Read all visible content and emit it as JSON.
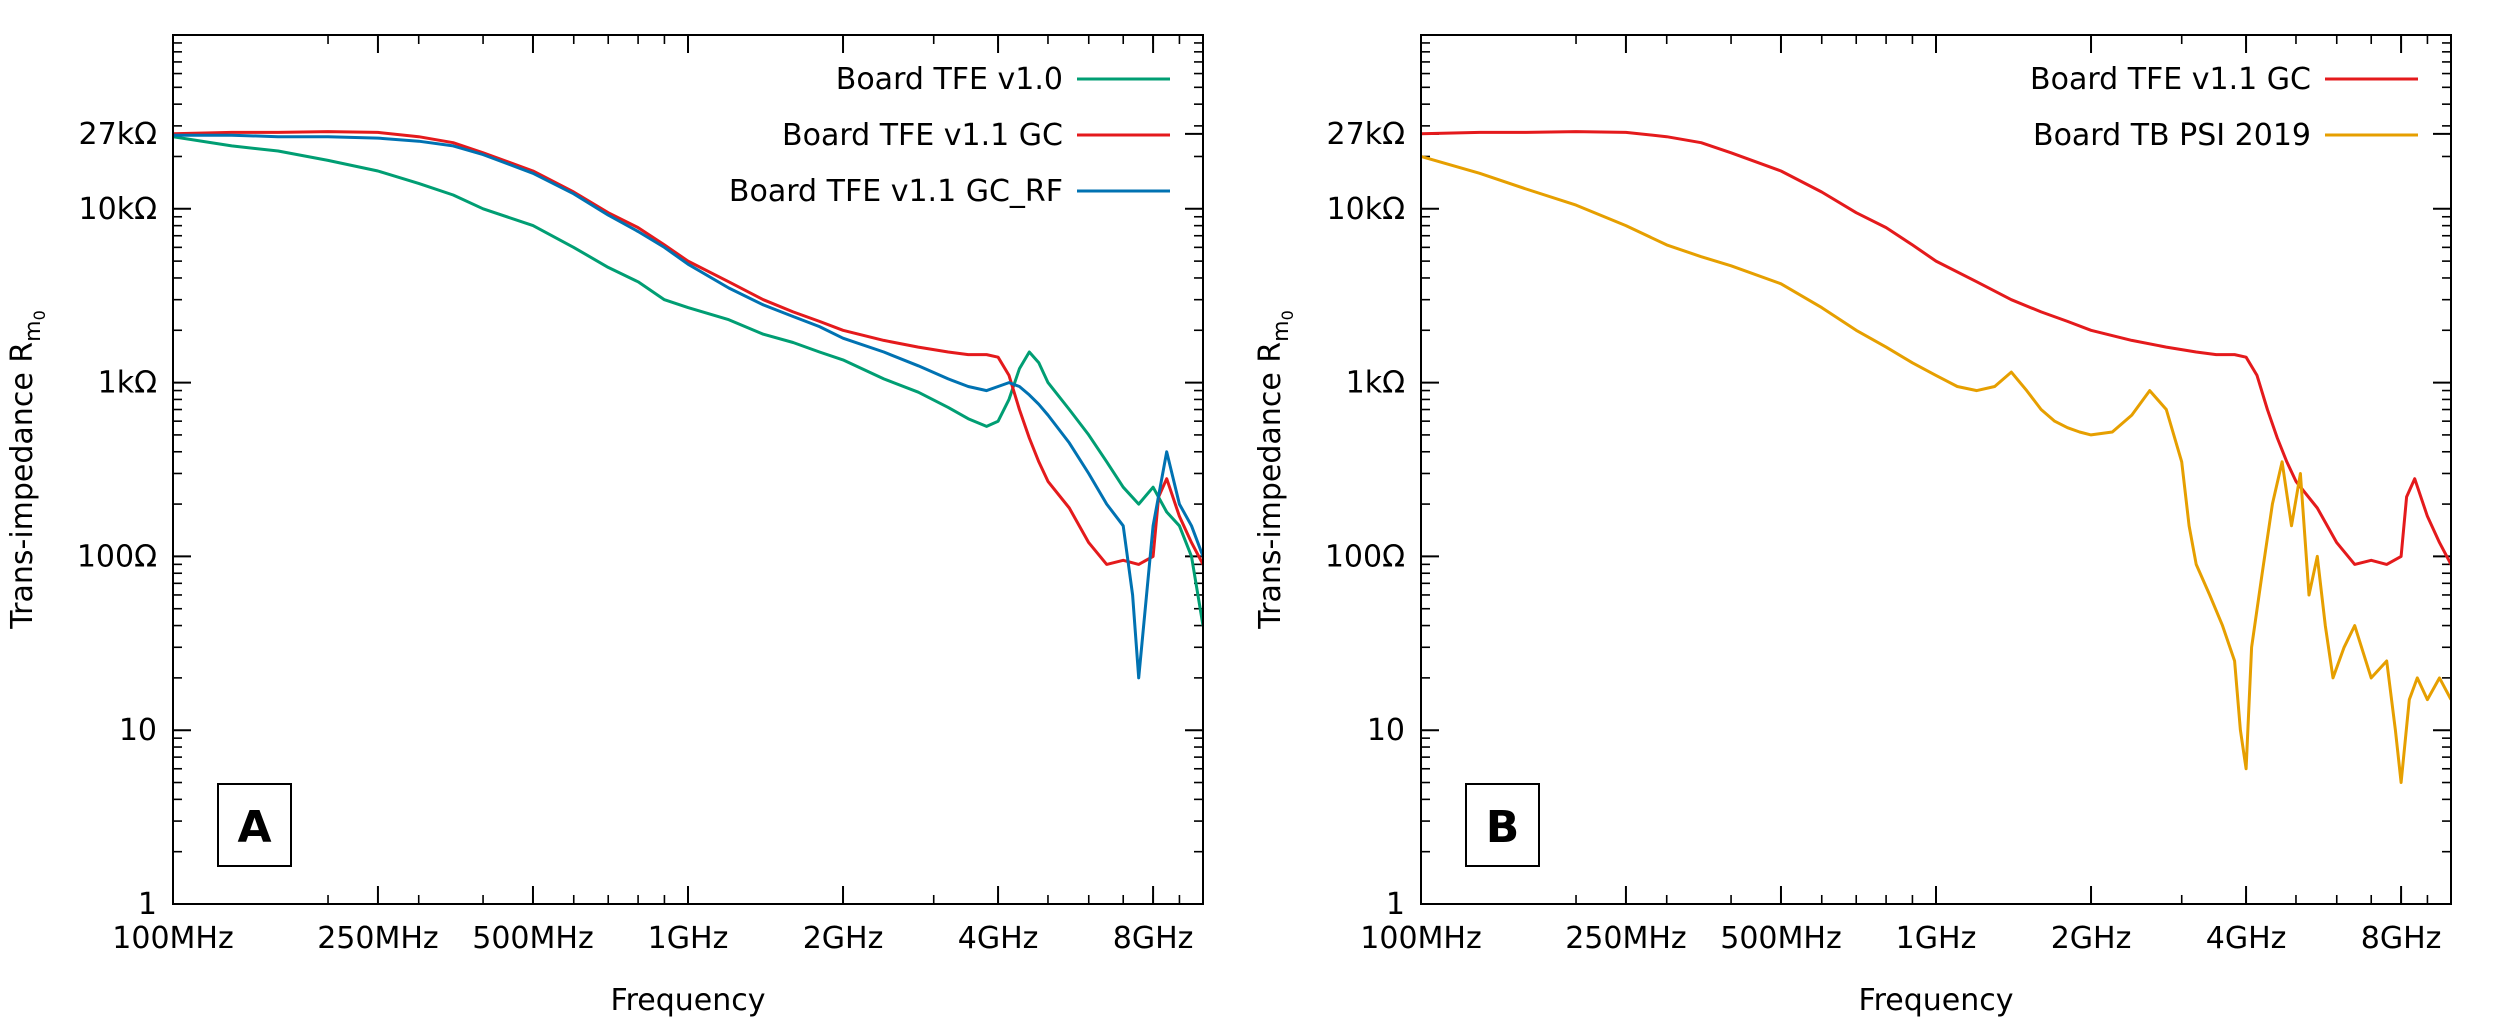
{
  "chart_data": [
    {
      "type": "line",
      "panel_label": "A",
      "xlabel": "Frequency",
      "ylabel": "Trans-impedance R",
      "ylabel_sub": "m",
      "ylabel_subsub": "0",
      "xscale": "log",
      "yscale": "log",
      "xlim": [
        100,
        10000
      ],
      "ylim": [
        1,
        100000
      ],
      "x_ticks": [
        {
          "value": 100,
          "label": "100MHz"
        },
        {
          "value": 250,
          "label": "250MHz"
        },
        {
          "value": 500,
          "label": "500MHz"
        },
        {
          "value": 1000,
          "label": "1GHz"
        },
        {
          "value": 2000,
          "label": "2GHz"
        },
        {
          "value": 4000,
          "label": "4GHz"
        },
        {
          "value": 8000,
          "label": "8GHz"
        }
      ],
      "y_ticks": [
        {
          "value": 1,
          "label": "1"
        },
        {
          "value": 10,
          "label": "10"
        },
        {
          "value": 100,
          "label": "100Ω"
        },
        {
          "value": 1000,
          "label": "1kΩ"
        },
        {
          "value": 10000,
          "label": "10kΩ"
        },
        {
          "value": 27000,
          "label": "27kΩ"
        }
      ],
      "legend_position": "top-right",
      "series": [
        {
          "name": "Board TFE v1.0",
          "color": "#009e73",
          "x": [
            100,
            130,
            160,
            200,
            250,
            300,
            350,
            400,
            500,
            600,
            700,
            800,
            900,
            1000,
            1200,
            1400,
            1600,
            1800,
            2000,
            2400,
            2800,
            3200,
            3500,
            3800,
            4000,
            4200,
            4400,
            4600,
            4800,
            5000,
            5500,
            6000,
            6500,
            7000,
            7500,
            8000,
            8500,
            9000,
            9500,
            10000
          ],
          "y": [
            26000,
            23000,
            21500,
            19000,
            16500,
            14000,
            12000,
            10000,
            8000,
            6000,
            4600,
            3800,
            3000,
            2700,
            2300,
            1900,
            1700,
            1500,
            1350,
            1050,
            880,
            720,
            620,
            560,
            600,
            800,
            1200,
            1500,
            1300,
            1000,
            700,
            500,
            350,
            250,
            200,
            250,
            180,
            150,
            100,
            40
          ]
        },
        {
          "name": "Board TFE v1.1 GC",
          "color": "#e41a1c",
          "x": [
            100,
            130,
            160,
            200,
            250,
            300,
            350,
            400,
            500,
            600,
            700,
            800,
            900,
            1000,
            1200,
            1400,
            1600,
            1800,
            2000,
            2400,
            2800,
            3200,
            3500,
            3800,
            4000,
            4200,
            4400,
            4600,
            4800,
            5000,
            5500,
            6000,
            6500,
            7000,
            7500,
            8000,
            8200,
            8500,
            9000,
            9500,
            10000
          ],
          "y": [
            27000,
            27500,
            27500,
            27800,
            27500,
            26000,
            24000,
            21000,
            16500,
            12500,
            9500,
            7800,
            6200,
            5000,
            3800,
            3000,
            2550,
            2250,
            2000,
            1750,
            1600,
            1500,
            1450,
            1450,
            1400,
            1100,
            700,
            480,
            350,
            270,
            190,
            120,
            90,
            95,
            90,
            100,
            220,
            280,
            170,
            120,
            90
          ]
        },
        {
          "name": "Board TFE v1.1 GC_RF",
          "color": "#0072b2",
          "x": [
            100,
            130,
            160,
            200,
            250,
            300,
            350,
            400,
            500,
            600,
            700,
            800,
            900,
            1000,
            1200,
            1400,
            1600,
            1800,
            2000,
            2400,
            2800,
            3200,
            3500,
            3800,
            4000,
            4200,
            4400,
            4600,
            4800,
            5000,
            5500,
            6000,
            6500,
            7000,
            7300,
            7500,
            8000,
            8500,
            9000,
            9500,
            10000
          ],
          "y": [
            26500,
            26500,
            26000,
            26000,
            25500,
            24500,
            23000,
            20500,
            16000,
            12200,
            9200,
            7400,
            6000,
            4800,
            3500,
            2800,
            2400,
            2100,
            1800,
            1500,
            1250,
            1050,
            950,
            900,
            950,
            1000,
            950,
            850,
            750,
            650,
            450,
            300,
            200,
            150,
            60,
            20,
            150,
            400,
            200,
            150,
            100
          ]
        }
      ]
    },
    {
      "type": "line",
      "panel_label": "B",
      "xlabel": "Frequency",
      "ylabel": "Trans-impedance R",
      "ylabel_sub": "m",
      "ylabel_subsub": "0",
      "xscale": "log",
      "yscale": "log",
      "xlim": [
        100,
        10000
      ],
      "ylim": [
        1,
        100000
      ],
      "x_ticks": [
        {
          "value": 100,
          "label": "100MHz"
        },
        {
          "value": 250,
          "label": "250MHz"
        },
        {
          "value": 500,
          "label": "500MHz"
        },
        {
          "value": 1000,
          "label": "1GHz"
        },
        {
          "value": 2000,
          "label": "2GHz"
        },
        {
          "value": 4000,
          "label": "4GHz"
        },
        {
          "value": 8000,
          "label": "8GHz"
        }
      ],
      "y_ticks": [
        {
          "value": 1,
          "label": "1"
        },
        {
          "value": 10,
          "label": "10"
        },
        {
          "value": 100,
          "label": "100Ω"
        },
        {
          "value": 1000,
          "label": "1kΩ"
        },
        {
          "value": 10000,
          "label": "10kΩ"
        },
        {
          "value": 27000,
          "label": "27kΩ"
        }
      ],
      "legend_position": "top-right",
      "series": [
        {
          "name": "Board TFE v1.1 GC",
          "color": "#e41a1c",
          "x": [
            100,
            130,
            160,
            200,
            250,
            300,
            350,
            400,
            500,
            600,
            700,
            800,
            900,
            1000,
            1200,
            1400,
            1600,
            1800,
            2000,
            2400,
            2800,
            3200,
            3500,
            3800,
            4000,
            4200,
            4400,
            4600,
            4800,
            5000,
            5500,
            6000,
            6500,
            7000,
            7500,
            8000,
            8200,
            8500,
            9000,
            9500,
            10000
          ],
          "y": [
            27000,
            27500,
            27500,
            27800,
            27500,
            26000,
            24000,
            21000,
            16500,
            12500,
            9500,
            7800,
            6200,
            5000,
            3800,
            3000,
            2550,
            2250,
            2000,
            1750,
            1600,
            1500,
            1450,
            1450,
            1400,
            1100,
            700,
            480,
            350,
            270,
            190,
            120,
            90,
            95,
            90,
            100,
            220,
            280,
            170,
            120,
            90
          ]
        },
        {
          "name": "Board TB PSI 2019",
          "color": "#e69f00",
          "x": [
            100,
            130,
            160,
            200,
            250,
            300,
            350,
            400,
            500,
            600,
            700,
            800,
            900,
            1000,
            1100,
            1200,
            1300,
            1400,
            1500,
            1600,
            1700,
            1800,
            1900,
            2000,
            2200,
            2400,
            2600,
            2800,
            3000,
            3100,
            3200,
            3400,
            3600,
            3800,
            3900,
            4000,
            4100,
            4300,
            4500,
            4700,
            4900,
            5100,
            5300,
            5500,
            5700,
            5900,
            6200,
            6500,
            7000,
            7500,
            7800,
            8000,
            8300,
            8600,
            9000,
            9500,
            10000
          ],
          "y": [
            20000,
            16000,
            13000,
            10500,
            8000,
            6200,
            5300,
            4700,
            3700,
            2700,
            2000,
            1600,
            1300,
            1100,
            950,
            900,
            950,
            1150,
            900,
            700,
            600,
            550,
            520,
            500,
            520,
            650,
            900,
            700,
            350,
            150,
            90,
            60,
            40,
            25,
            10,
            6,
            30,
            80,
            200,
            350,
            150,
            300,
            60,
            100,
            40,
            20,
            30,
            40,
            20,
            25,
            10,
            5,
            15,
            20,
            15,
            20,
            15
          ]
        }
      ]
    }
  ]
}
